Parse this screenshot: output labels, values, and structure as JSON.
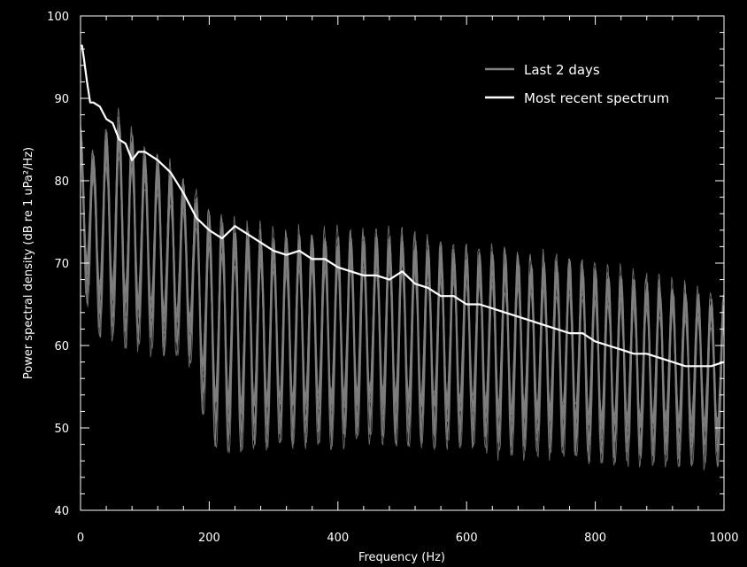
{
  "chart_data": {
    "type": "line",
    "title": "",
    "xlabel": "Frequency (Hz)",
    "ylabel": "Power spectral density (dB re 1 uPa²/Hz)",
    "xlim": [
      0,
      1000
    ],
    "ylim": [
      40,
      100
    ],
    "x_ticks": [
      0,
      200,
      400,
      600,
      800,
      1000
    ],
    "y_ticks": [
      40,
      50,
      60,
      70,
      80,
      90,
      100
    ],
    "grid": false,
    "legend_position": "top-right",
    "background_color": "#000000",
    "series": [
      {
        "name": "Last 2 days",
        "color": "#808080",
        "style": "many thin overlapping spectra with periodic comb peaks every ~20 Hz",
        "x": [
          0,
          25,
          50,
          75,
          100,
          125,
          150,
          175,
          200,
          250,
          300,
          350,
          400,
          450,
          500,
          550,
          600,
          650,
          700,
          750,
          800,
          850,
          900,
          950,
          1000
        ],
        "envelope_high": [
          88,
          84,
          90,
          88,
          85,
          84,
          82,
          80,
          78,
          76,
          75,
          75,
          75,
          75,
          75,
          74,
          73,
          73,
          72,
          72,
          71,
          70,
          69,
          68,
          67
        ],
        "envelope_low": [
          68,
          62,
          61,
          60,
          60,
          59,
          59,
          58,
          48,
          47,
          48,
          48,
          48,
          49,
          48,
          48,
          48,
          47,
          47,
          47,
          46,
          46,
          46,
          46,
          46
        ]
      },
      {
        "name": "Most recent spectrum",
        "color": "#ffffff",
        "x": [
          2,
          5,
          10,
          15,
          20,
          30,
          40,
          50,
          60,
          70,
          80,
          90,
          100,
          120,
          140,
          160,
          180,
          200,
          220,
          240,
          260,
          280,
          300,
          320,
          340,
          360,
          380,
          400,
          420,
          440,
          460,
          480,
          500,
          520,
          540,
          560,
          580,
          600,
          620,
          640,
          660,
          680,
          700,
          720,
          740,
          760,
          780,
          800,
          820,
          840,
          860,
          880,
          900,
          920,
          940,
          960,
          980,
          1000
        ],
        "y": [
          96.5,
          95,
          92,
          89.5,
          89.5,
          89,
          87.5,
          87,
          85,
          84.5,
          82.5,
          83.5,
          83.5,
          82.5,
          81,
          78.5,
          75.5,
          74,
          73,
          74.5,
          73.5,
          72.5,
          71.5,
          71,
          71.5,
          70.5,
          70.5,
          69.5,
          69,
          68.5,
          68.5,
          68,
          69,
          67.5,
          67,
          66,
          66,
          65,
          65,
          64.5,
          64,
          63.5,
          63,
          62.5,
          62,
          61.5,
          61.5,
          60.5,
          60,
          59.5,
          59,
          59,
          58.5,
          58,
          57.5,
          57.5,
          57.5,
          58
        ]
      }
    ]
  }
}
